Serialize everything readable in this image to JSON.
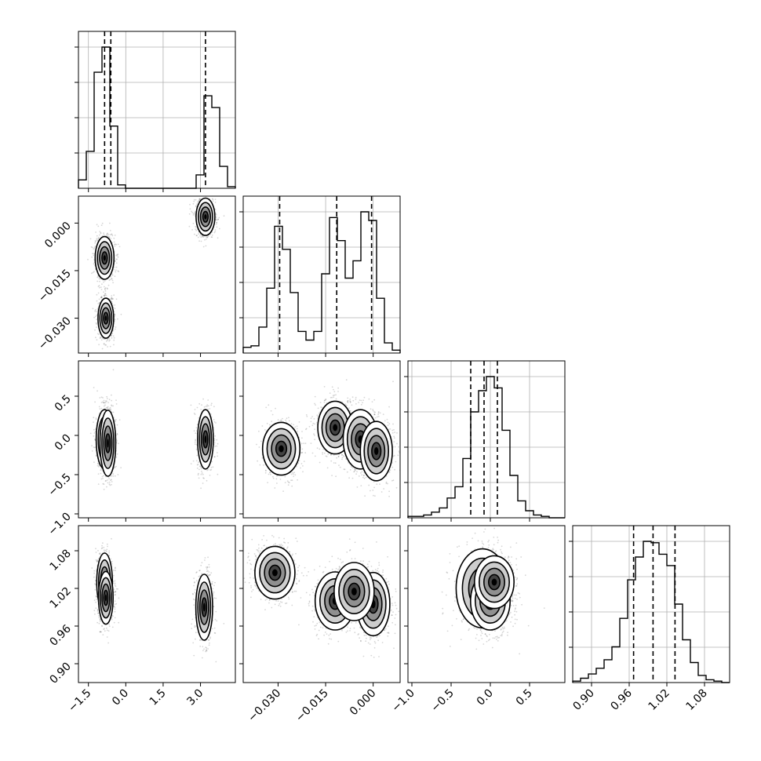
{
  "chart_data": {
    "type": "corner",
    "grid": true,
    "n_params": 4,
    "params": [
      {
        "range": [
          -1.9,
          4.4
        ],
        "ticks": [
          -1.5,
          0.0,
          1.5,
          3.0
        ],
        "tick_labels": [
          "−1.5",
          "0.0",
          "1.5",
          "3.0"
        ],
        "quantiles": [
          -0.85,
          -0.6,
          3.2
        ],
        "hist_bins": [
          -1.9,
          -1.585,
          -1.27,
          -0.955,
          -0.64,
          -0.325,
          -0.01,
          0.305,
          0.62,
          0.935,
          1.25,
          1.565,
          1.88,
          2.195,
          2.51,
          2.825,
          3.14,
          3.455,
          3.77,
          4.085,
          4.4
        ],
        "hist_counts": [
          0.05,
          0.22,
          0.69,
          0.84,
          0.37,
          0.02,
          0,
          0,
          0,
          0,
          0,
          0,
          0,
          0,
          0,
          0.08,
          0.55,
          0.48,
          0.13,
          0.01
        ]
      },
      {
        "range": [
          -0.041,
          0.0085
        ],
        "ticks": [
          -0.03,
          -0.015,
          0.0
        ],
        "tick_labels": [
          "−0.030",
          "−0.015",
          "0.000"
        ],
        "quantiles": [
          -0.0295,
          -0.0115,
          -0.0005
        ],
        "hist_bins": [
          -0.041,
          -0.038525,
          -0.03605,
          -0.033575,
          -0.0311,
          -0.028625,
          -0.02615,
          -0.023675,
          -0.0212,
          -0.018725,
          -0.01625,
          -0.013775,
          -0.0113,
          -0.008825,
          -0.00635,
          -0.003875,
          -0.0014,
          0.001075,
          0.00355,
          0.006025,
          0.0085
        ],
        "hist_counts": [
          0.04,
          0.05,
          0.18,
          0.45,
          0.88,
          0.72,
          0.42,
          0.15,
          0.09,
          0.15,
          0.55,
          0.94,
          0.78,
          0.52,
          0.64,
          0.98,
          0.92,
          0.38,
          0.07,
          0.02
        ]
      },
      {
        "range": [
          -1.05,
          0.95
        ],
        "ticks": [
          -1.0,
          -0.5,
          0.0,
          0.5
        ],
        "tick_labels": [
          "−1.0",
          "−0.5",
          "0.0",
          "0.5"
        ],
        "quantiles": [
          -0.25,
          -0.08,
          0.09
        ],
        "hist_bins": [
          -1.05,
          -0.95,
          -0.85,
          -0.75,
          -0.65,
          -0.55,
          -0.45,
          -0.35,
          -0.25,
          -0.15,
          -0.05,
          0.05,
          0.15,
          0.25,
          0.35,
          0.45,
          0.55,
          0.65,
          0.75,
          0.85,
          0.95
        ],
        "hist_counts": [
          0.01,
          0.01,
          0.02,
          0.04,
          0.07,
          0.14,
          0.22,
          0.42,
          0.61,
          0.83,
          0.98,
          0.8,
          0.52,
          0.3,
          0.12,
          0.07,
          0.03,
          0.01,
          0.01,
          0
        ],
        "hist_counts_2": [
          0.01,
          0.01,
          0.02,
          0.04,
          0.07,
          0.14,
          0.22,
          0.42,
          0.75,
          0.9,
          1.0,
          0.92,
          0.62,
          0.3,
          0.12,
          0.05,
          0.02,
          0.01,
          0,
          0
        ]
      },
      {
        "range": [
          0.87,
          1.12
        ],
        "ticks": [
          0.9,
          0.96,
          1.02,
          1.08
        ],
        "tick_labels": [
          "0.90",
          "0.96",
          "1.02",
          "1.08"
        ],
        "quantiles": [
          0.967,
          0.998,
          1.033
        ],
        "hist_bins": [
          0.87,
          0.8825,
          0.895,
          0.9075,
          0.92,
          0.9325,
          0.945,
          0.9575,
          0.97,
          0.9825,
          0.995,
          1.0075,
          1.02,
          1.0325,
          1.045,
          1.0575,
          1.07,
          1.0825,
          1.095,
          1.1075,
          1.12
        ],
        "hist_counts": [
          0.01,
          0.03,
          0.06,
          0.1,
          0.16,
          0.25,
          0.45,
          0.72,
          0.88,
          0.99,
          0.98,
          0.9,
          0.82,
          0.55,
          0.3,
          0.14,
          0.05,
          0.02,
          0.01,
          0
        ]
      }
    ],
    "clusters": [
      [
        {
          "a": -0.85,
          "b": -0.011,
          "sa": 0.18,
          "sb": 0.0032,
          "w": 1.0
        },
        {
          "a": -0.8,
          "b": -0.03,
          "sa": 0.15,
          "sb": 0.003,
          "w": 0.95
        },
        {
          "a": 3.2,
          "b": 0.002,
          "sa": 0.18,
          "sb": 0.0028,
          "w": 1.1
        }
      ],
      [
        {
          "a": -0.85,
          "b": -0.05,
          "sa": 0.16,
          "sb": 0.18,
          "w": 1.0
        },
        {
          "a": -0.72,
          "b": -0.1,
          "sa": 0.15,
          "sb": 0.2,
          "w": 0.8
        },
        {
          "a": 3.2,
          "b": -0.05,
          "sa": 0.15,
          "sb": 0.18,
          "w": 0.9
        }
      ],
      [
        {
          "a": -0.85,
          "b": 1.03,
          "sa": 0.15,
          "sb": 0.022,
          "w": 1.0
        },
        {
          "a": -0.8,
          "b": 1.005,
          "sa": 0.14,
          "sb": 0.02,
          "w": 0.7
        },
        {
          "a": 3.15,
          "b": 0.99,
          "sa": 0.16,
          "sb": 0.025,
          "w": 0.9
        }
      ],
      [
        {
          "a": -0.029,
          "b": -0.17,
          "sa": 0.0028,
          "sb": 0.16,
          "w": 0.8
        },
        {
          "a": -0.012,
          "b": 0.1,
          "sa": 0.0026,
          "sb": 0.16,
          "w": 1.0
        },
        {
          "a": -0.004,
          "b": -0.05,
          "sa": 0.0026,
          "sb": 0.18,
          "w": 0.8
        },
        {
          "a": 0.001,
          "b": -0.2,
          "sa": 0.0024,
          "sb": 0.18,
          "w": 0.9
        }
      ],
      [
        {
          "a": -0.031,
          "b": 1.045,
          "sa": 0.003,
          "sb": 0.02,
          "w": 1.0
        },
        {
          "a": -0.012,
          "b": 1.0,
          "sa": 0.003,
          "sb": 0.022,
          "w": 0.9
        },
        {
          "a": 0.0,
          "b": 0.995,
          "sa": 0.0025,
          "sb": 0.024,
          "w": 1.0
        },
        {
          "a": -0.006,
          "b": 1.015,
          "sa": 0.003,
          "sb": 0.022,
          "w": 0.5
        }
      ],
      [
        {
          "a": -0.1,
          "b": 1.02,
          "sa": 0.16,
          "sb": 0.03,
          "w": 0.8
        },
        {
          "a": 0.0,
          "b": 1.0,
          "sa": 0.12,
          "sb": 0.022,
          "w": 1.0
        },
        {
          "a": 0.05,
          "b": 1.03,
          "sa": 0.12,
          "sb": 0.02,
          "w": 0.6
        }
      ]
    ]
  }
}
